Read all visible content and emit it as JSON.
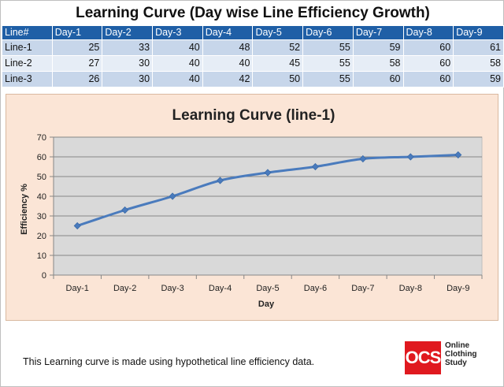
{
  "title": "Learning Curve (Day wise Line Efficiency Growth)",
  "table": {
    "headers": [
      "Line#",
      "Day-1",
      "Day-2",
      "Day-3",
      "Day-4",
      "Day-5",
      "Day-6",
      "Day-7",
      "Day-8",
      "Day-9"
    ],
    "rows": [
      {
        "label": "Line-1",
        "values": [
          25,
          33,
          40,
          48,
          52,
          55,
          59,
          60,
          61
        ]
      },
      {
        "label": "Line-2",
        "values": [
          27,
          30,
          40,
          40,
          45,
          55,
          58,
          60,
          58
        ]
      },
      {
        "label": "Line-3",
        "values": [
          26,
          30,
          40,
          42,
          50,
          55,
          60,
          60,
          59
        ]
      }
    ]
  },
  "chart_data": {
    "type": "line",
    "title": "Learning Curve (line-1)",
    "xlabel": "Day",
    "ylabel": "Efficiency %",
    "categories": [
      "Day-1",
      "Day-2",
      "Day-3",
      "Day-4",
      "Day-5",
      "Day-6",
      "Day-7",
      "Day-8",
      "Day-9"
    ],
    "series": [
      {
        "values": [
          25,
          33,
          40,
          48,
          52,
          55,
          59,
          60,
          61
        ]
      }
    ],
    "ylim": [
      0,
      70
    ],
    "yticks": [
      0,
      10,
      20,
      30,
      40,
      50,
      60,
      70
    ],
    "grid": true,
    "legend": "none",
    "colors": {
      "line": "#4a7bbd",
      "plot_bg": "#d9d9d9",
      "panel_bg": "#fbe5d6",
      "gridline": "#868686"
    }
  },
  "footer": {
    "note": "This Learning curve is made using hypothetical line efficiency data."
  },
  "logo": {
    "mark": "OCS",
    "lines": [
      "Online",
      "Clothing",
      "Study"
    ]
  }
}
